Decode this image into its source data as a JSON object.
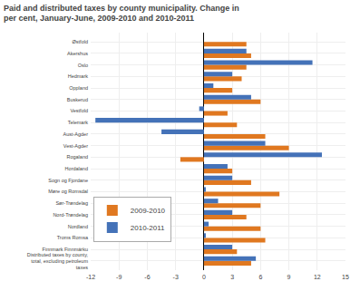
{
  "chart_data": {
    "type": "bar",
    "orientation": "horizontal",
    "title": "Paid and distributed taxes by county municipality. Change in\nper cent, January-June, 2009-2010 and 2010-2011",
    "categories": [
      "Distributed taxes by county,\ntotal, excluding petroleum\ntaxes",
      "Finnmark Finnmárku",
      "Troms Romsa",
      "Nordland",
      "Nord-Trøndelag",
      "Sør-Trøndelag",
      "Møre og Romsdal",
      "Sogn og Fjordane",
      "Hordaland",
      "Rogaland",
      "Vest-Agder",
      "Aust-Agder",
      "Telemark",
      "Vestfold",
      "Buskerud",
      "Oppland",
      "Hedmark",
      "Oslo",
      "Akershus",
      "Østfold"
    ],
    "series": [
      {
        "name": "2009-2010",
        "color": "#e07820",
        "values": [
          5.0,
          3.5,
          6.5,
          6.0,
          4.5,
          6.0,
          8.0,
          5.0,
          3.0,
          -2.5,
          9.0,
          6.5,
          3.5,
          2.5,
          6.0,
          3.0,
          4.0,
          4.5,
          5.0,
          4.5
        ]
      },
      {
        "name": "2010-2011",
        "color": "#4472b8",
        "values": [
          5.5,
          3.0,
          0.2,
          0.5,
          3.0,
          1.5,
          0.2,
          3.0,
          2.5,
          12.5,
          6.5,
          -4.5,
          -11.5,
          -0.5,
          5.0,
          1.0,
          3.0,
          11.5,
          4.5,
          0.0
        ]
      }
    ],
    "xlim": [
      -12,
      15
    ],
    "xticks": [
      -12,
      -9,
      -6,
      -3,
      0,
      3,
      6,
      9,
      12,
      15
    ],
    "grid": true,
    "legend": "lower left"
  }
}
